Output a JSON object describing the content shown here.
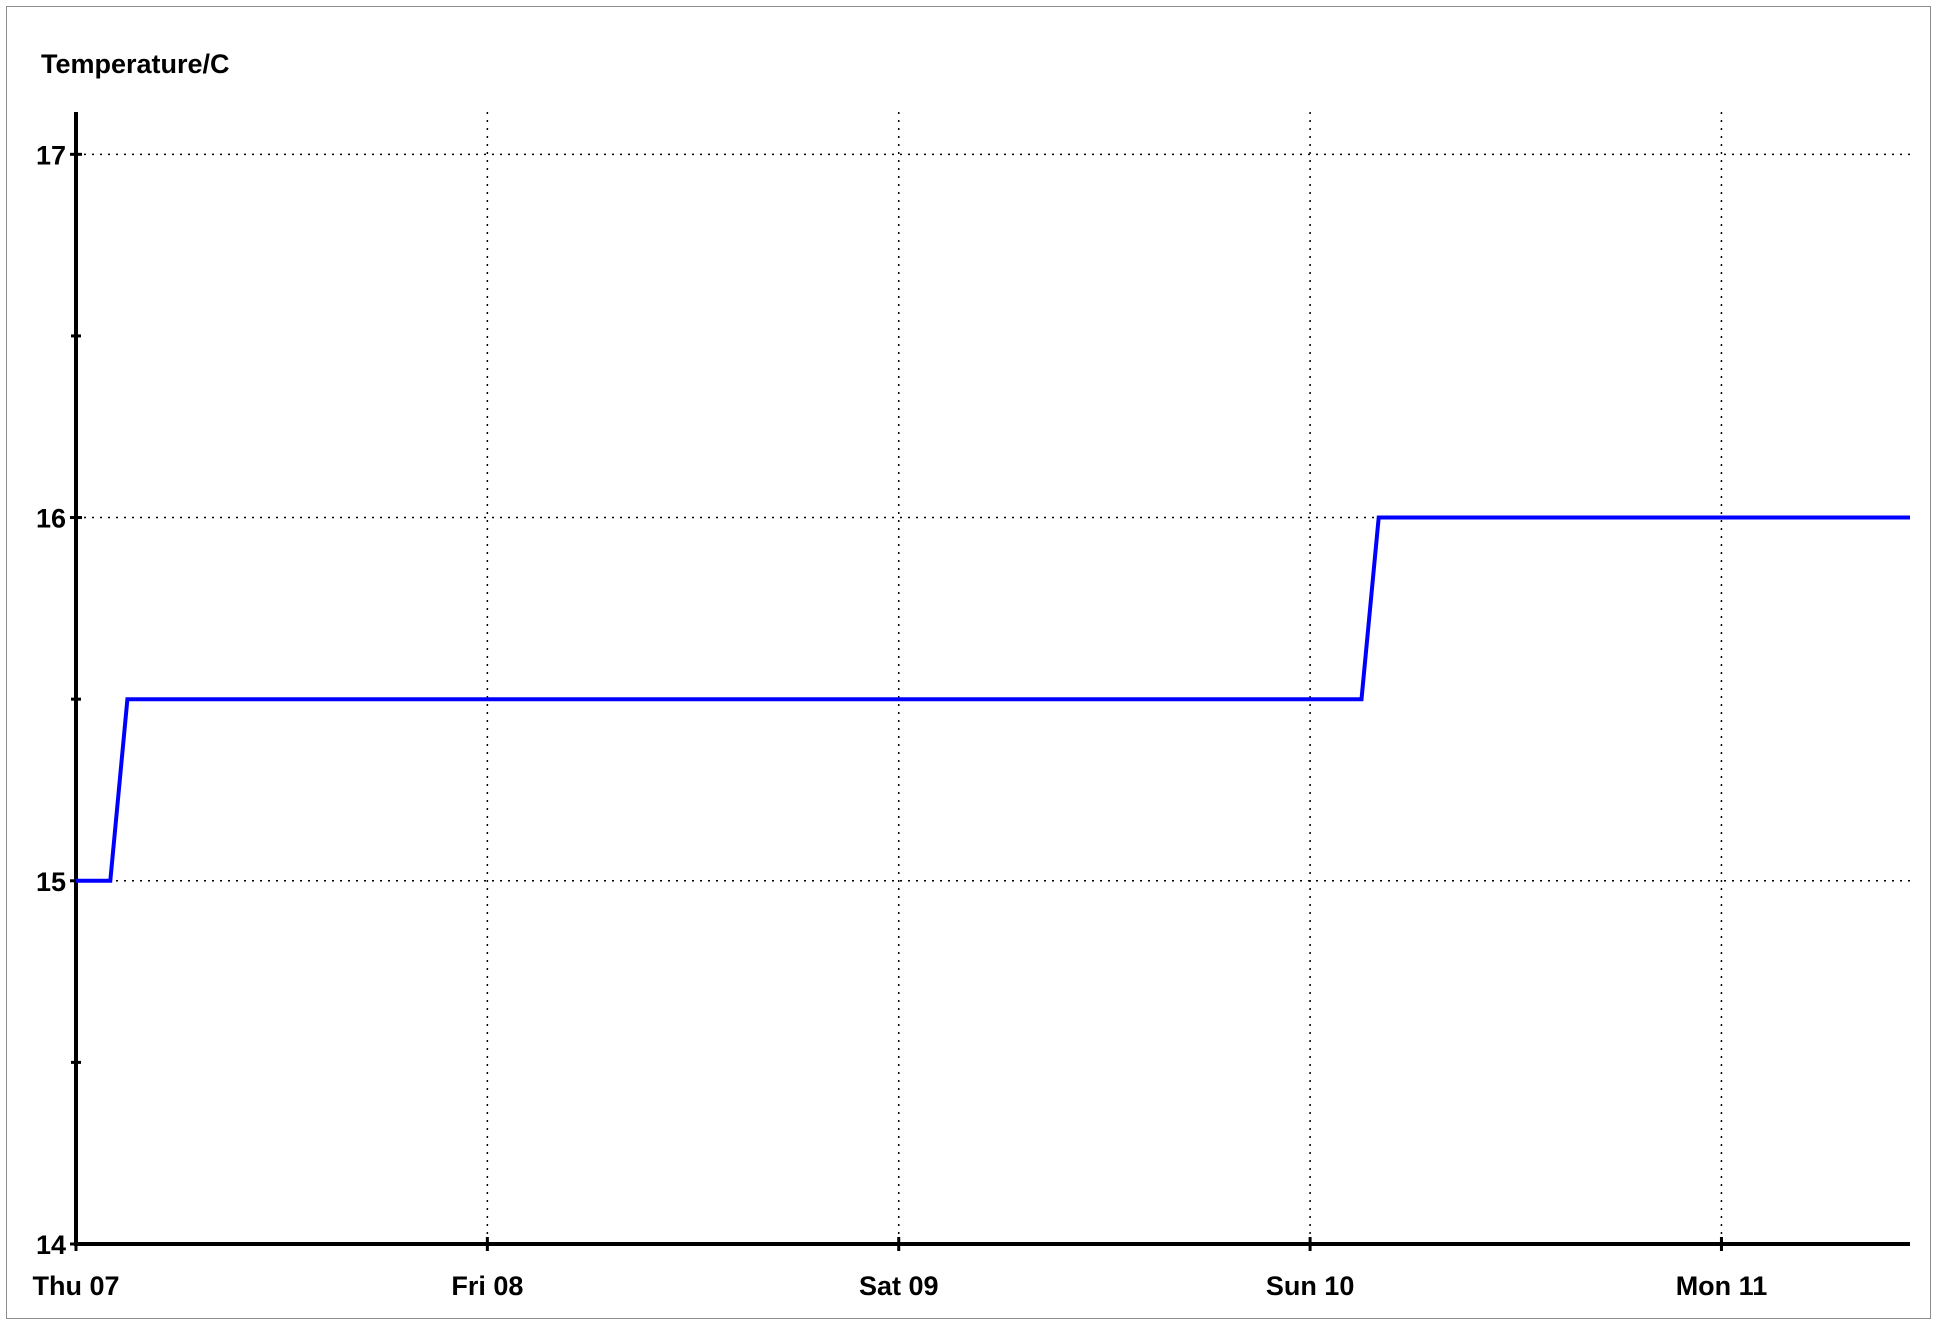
{
  "chart_data": {
    "type": "line",
    "ylabel": "Temperature/C",
    "xlabel": "",
    "title": "",
    "ylim": [
      14,
      17.1
    ],
    "yticks_major": [
      14,
      15,
      16,
      17
    ],
    "yticks_minor": [
      14.5,
      15.5,
      16.5
    ],
    "xlim": [
      "2015-05-07T00:00",
      "2015-05-11T11:00"
    ],
    "x_ticks": [
      {
        "label": "Thu 07",
        "date": "2015-05-07T00:00"
      },
      {
        "label": "Fri 08",
        "date": "2015-05-08T00:00"
      },
      {
        "label": "Sat 09",
        "date": "2015-05-09T00:00"
      },
      {
        "label": "Sun 10",
        "date": "2015-05-10T00:00"
      },
      {
        "label": "Mon 11",
        "date": "2015-05-11T00:00"
      }
    ],
    "grid": true,
    "series": [
      {
        "color": "#0000ff",
        "points": [
          {
            "x": "2015-05-06T23:00",
            "y": 15.0
          },
          {
            "x": "2015-05-07T02:00",
            "y": 15.0
          },
          {
            "x": "2015-05-07T03:00",
            "y": 15.5
          },
          {
            "x": "2015-05-10T03:00",
            "y": 15.5
          },
          {
            "x": "2015-05-10T04:00",
            "y": 16.0
          },
          {
            "x": "2015-05-11T13:00",
            "y": 16.0
          }
        ]
      }
    ]
  }
}
